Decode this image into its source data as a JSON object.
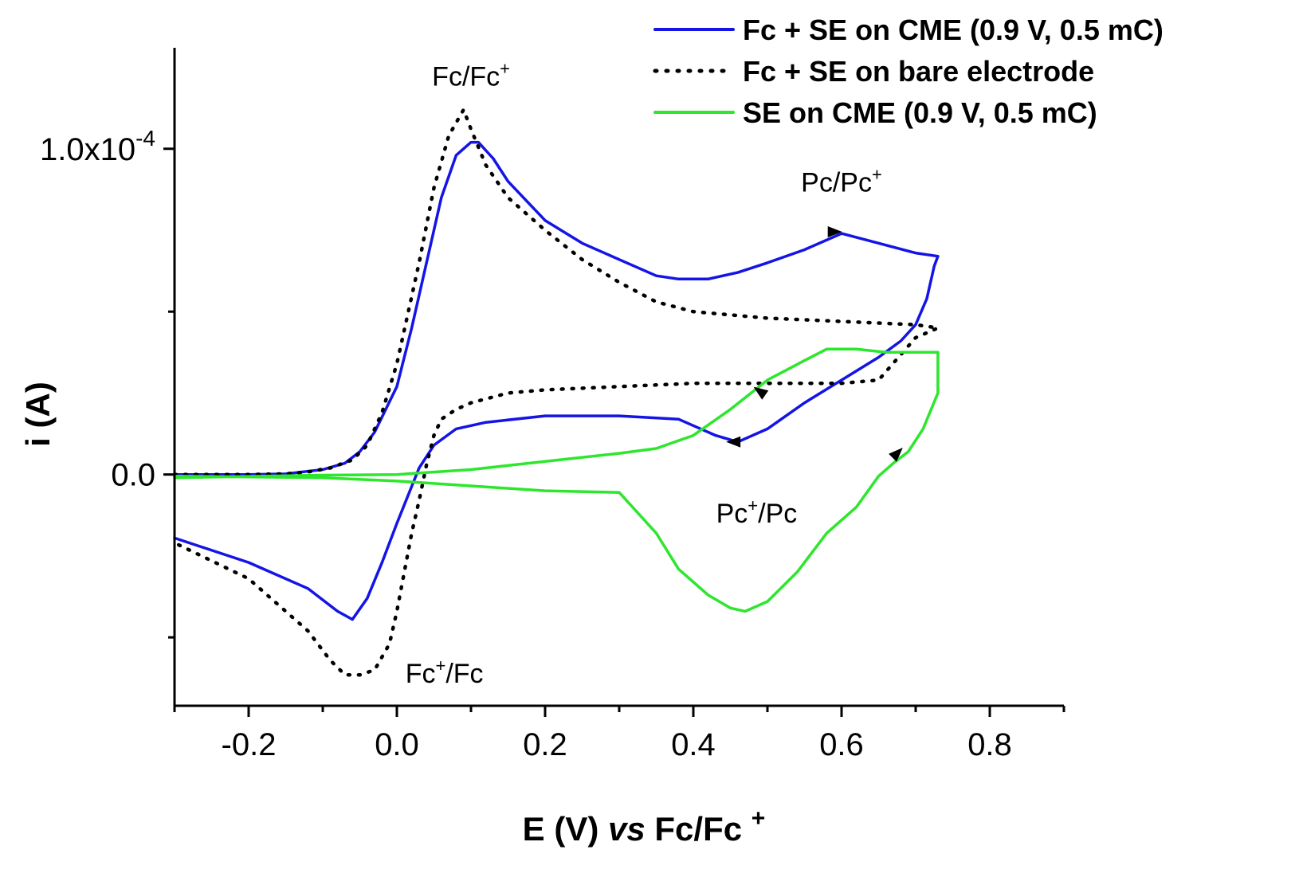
{
  "chart_data": {
    "type": "line",
    "title": "",
    "xlabel": {
      "main": "E (V) ",
      "italic": "vs",
      "ref": " Fc/Fc",
      "sup": "+"
    },
    "ylabel": "i (A)",
    "xlim": [
      -0.3,
      0.9
    ],
    "ylim": [
      -7e-05,
      0.000135
    ],
    "x_ticks": [
      {
        "value": -0.2,
        "label": "-0.2"
      },
      {
        "value": 0.0,
        "label": "0.0"
      },
      {
        "value": 0.2,
        "label": "0.2"
      },
      {
        "value": 0.4,
        "label": "0.4"
      },
      {
        "value": 0.6,
        "label": "0.6"
      },
      {
        "value": 0.8,
        "label": "0.8"
      }
    ],
    "x_minor_ticks": [
      -0.3,
      -0.1,
      0.1,
      0.3,
      0.5,
      0.7,
      0.9
    ],
    "y_ticks": [
      {
        "value": 0.0,
        "label": "0.0"
      },
      {
        "value": 0.0001,
        "label_base": "1.0x10",
        "label_exp": "-4"
      }
    ],
    "y_minor_ticks": [
      -5e-05,
      5e-05
    ],
    "legend_position": "top-right",
    "series": [
      {
        "name": "Fc + SE on CME (0.9 V, 0.5 mC)",
        "color": "#1414e6",
        "style": "solid",
        "x": [
          -0.3,
          -0.2,
          -0.15,
          -0.1,
          -0.07,
          -0.05,
          -0.03,
          0.0,
          0.02,
          0.04,
          0.06,
          0.08,
          0.1,
          0.11,
          0.13,
          0.15,
          0.2,
          0.25,
          0.3,
          0.35,
          0.38,
          0.42,
          0.46,
          0.5,
          0.55,
          0.6,
          0.65,
          0.7,
          0.73,
          0.725,
          0.715,
          0.7,
          0.68,
          0.65,
          0.6,
          0.55,
          0.5,
          0.46,
          0.43,
          0.38,
          0.3,
          0.2,
          0.12,
          0.08,
          0.05,
          0.03,
          0.0,
          -0.02,
          -0.04,
          -0.06,
          -0.08,
          -0.12,
          -0.2,
          -0.3
        ],
        "y": [
          0.0,
          0.0,
          2e-07,
          1.5e-06,
          3.5e-06,
          7e-06,
          1.3e-05,
          2.7e-05,
          4.5e-05,
          6.5e-05,
          8.5e-05,
          9.8e-05,
          0.000102,
          0.000102,
          9.7e-05,
          9e-05,
          7.8e-05,
          7.1e-05,
          6.6e-05,
          6.1e-05,
          6e-05,
          6e-05,
          6.2e-05,
          6.5e-05,
          6.9e-05,
          7.4e-05,
          7.1e-05,
          6.8e-05,
          6.7e-05,
          6.4e-05,
          5.4e-05,
          4.6e-05,
          4.1e-05,
          3.6e-05,
          2.9e-05,
          2.2e-05,
          1.4e-05,
          1e-05,
          1.2e-05,
          1.7e-05,
          1.8e-05,
          1.8e-05,
          1.6e-05,
          1.4e-05,
          9e-06,
          2e-06,
          -1.5e-05,
          -2.7e-05,
          -3.8e-05,
          -4.45e-05,
          -4.2e-05,
          -3.5e-05,
          -2.7e-05,
          -1.95e-05
        ]
      },
      {
        "name": "Fc + SE on bare electrode",
        "color": "#000000",
        "style": "dotted",
        "x": [
          -0.3,
          -0.2,
          -0.15,
          -0.12,
          -0.09,
          -0.06,
          -0.04,
          -0.02,
          0.0,
          0.03,
          0.05,
          0.07,
          0.09,
          0.1,
          0.12,
          0.15,
          0.2,
          0.25,
          0.3,
          0.35,
          0.4,
          0.5,
          0.6,
          0.7,
          0.73,
          0.72,
          0.7,
          0.65,
          0.6,
          0.5,
          0.4,
          0.3,
          0.2,
          0.15,
          0.1,
          0.08,
          0.06,
          0.05,
          0.04,
          0.03,
          0.02,
          0.01,
          0.0,
          -0.01,
          -0.03,
          -0.05,
          -0.07,
          -0.09,
          -0.12,
          -0.2,
          -0.3
        ],
        "y": [
          0.0,
          0.0,
          2e-07,
          8e-07,
          2e-06,
          4.5e-06,
          9e-06,
          1.9e-05,
          3.4e-05,
          6.5e-05,
          8.8e-05,
          0.000104,
          0.000112,
          0.000106,
          9.5e-05,
          8.5e-05,
          7.5e-05,
          6.6e-05,
          5.9e-05,
          5.3e-05,
          5e-05,
          4.8e-05,
          4.7e-05,
          4.6e-05,
          4.5e-05,
          4.4e-05,
          4.2e-05,
          2.9e-05,
          2.8e-05,
          2.8e-05,
          2.8e-05,
          2.7e-05,
          2.6e-05,
          2.5e-05,
          2.2e-05,
          2e-05,
          1.7e-05,
          1.2e-05,
          3e-06,
          -8e-06,
          -1.8e-05,
          -3e-05,
          -4.2e-05,
          -5.2e-05,
          -6e-05,
          -6.15e-05,
          -6.15e-05,
          -5.7e-05,
          -4.8e-05,
          -3.2e-05,
          -2.1e-05
        ]
      },
      {
        "name": "SE on CME (0.9 V, 0.5 mC)",
        "color": "#2de62d",
        "style": "solid",
        "x": [
          -0.3,
          -0.1,
          0.0,
          0.1,
          0.2,
          0.3,
          0.35,
          0.4,
          0.45,
          0.5,
          0.55,
          0.58,
          0.62,
          0.66,
          0.7,
          0.73,
          0.73,
          0.71,
          0.69,
          0.67,
          0.65,
          0.62,
          0.58,
          0.54,
          0.5,
          0.47,
          0.45,
          0.42,
          0.38,
          0.35,
          0.3,
          0.2,
          0.1,
          0.0,
          -0.1,
          -0.3
        ],
        "y": [
          -1e-06,
          -2e-07,
          0.0,
          1.5e-06,
          4e-06,
          6.5e-06,
          8e-06,
          1.2e-05,
          2e-05,
          2.9e-05,
          3.5e-05,
          3.85e-05,
          3.85e-05,
          3.75e-05,
          3.75e-05,
          3.75e-05,
          2.5e-05,
          1.4e-05,
          7e-06,
          3.5e-06,
          -5e-07,
          -1e-05,
          -1.8e-05,
          -3e-05,
          -3.9e-05,
          -4.2e-05,
          -4.1e-05,
          -3.7e-05,
          -2.9e-05,
          -1.8e-05,
          -5.5e-06,
          -5e-06,
          -3.5e-06,
          -2e-06,
          -1e-06,
          -5e-07
        ]
      }
    ],
    "annotations": [
      {
        "text": "Fc/Fc",
        "sup": "+",
        "at_x": 0.07,
        "at_y": 0.000114
      },
      {
        "text": "Pc/Pc",
        "sup": "+",
        "at_x": 0.6,
        "at_y": 8e-05
      },
      {
        "text": "Pc",
        "sup": "+",
        "after": "/Pc",
        "at_x": 0.4,
        "at_y": -3e-06
      },
      {
        "text": "Fc",
        "sup": "+",
        "after": "/Fc",
        "at_x": -0.01,
        "at_y": -6.15e-05
      }
    ]
  }
}
